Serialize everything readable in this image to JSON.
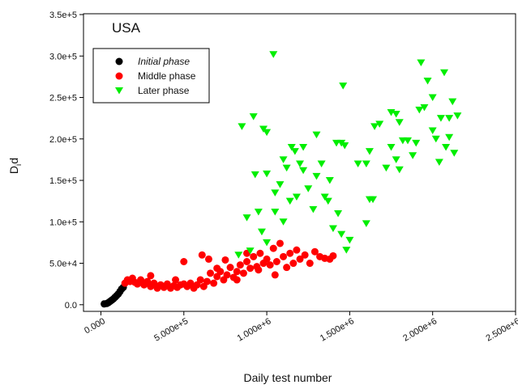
{
  "chart_data": {
    "type": "scatter",
    "annotation": "USA",
    "x_label": "Daily test number",
    "y_label": [
      "D",
      "i",
      "d"
    ],
    "xlim": [
      -105000,
      2500000
    ],
    "ylim": [
      -8000,
      351000
    ],
    "xticks": [
      {
        "value": 0,
        "label": "0.000"
      },
      {
        "value": 500000,
        "label": "5.000e+5"
      },
      {
        "value": 1000000,
        "label": "1.000e+6"
      },
      {
        "value": 1500000,
        "label": "1.500e+6"
      },
      {
        "value": 2000000,
        "label": "2.000e+6"
      },
      {
        "value": 2500000,
        "label": "2.500e+6"
      }
    ],
    "yticks": [
      {
        "value": 0,
        "label": "0.0"
      },
      {
        "value": 50000,
        "label": "5.0e+4"
      },
      {
        "value": 100000,
        "label": "1.0e+5"
      },
      {
        "value": 150000,
        "label": "1.5e+5"
      },
      {
        "value": 200000,
        "label": "2.0e+5"
      },
      {
        "value": 250000,
        "label": "2.5e+5"
      },
      {
        "value": 300000,
        "label": "3.0e+5"
      },
      {
        "value": 350000,
        "label": "3.5e+5"
      }
    ],
    "series": [
      {
        "name": "Initial phase",
        "color": "#000000",
        "marker": "circle",
        "font_style": "italic",
        "x": [
          20000,
          35000,
          45000,
          55000,
          65000,
          75000,
          85000,
          95000,
          105000,
          115000,
          125000,
          135000
        ],
        "y": [
          1000,
          1500,
          2500,
          4000,
          5500,
          7000,
          9000,
          11000,
          13000,
          16000,
          19000,
          21000
        ]
      },
      {
        "name": "Middle phase",
        "color": "#ff0000",
        "marker": "circle",
        "font_style": "normal",
        "x": [
          145000,
          160000,
          175000,
          190000,
          205000,
          220000,
          240000,
          260000,
          280000,
          300000,
          320000,
          340000,
          360000,
          380000,
          400000,
          420000,
          440000,
          460000,
          480000,
          500000,
          520000,
          540000,
          560000,
          580000,
          600000,
          620000,
          640000,
          660000,
          680000,
          700000,
          720000,
          740000,
          760000,
          780000,
          800000,
          820000,
          840000,
          860000,
          880000,
          900000,
          920000,
          940000,
          960000,
          980000,
          1000000,
          1020000,
          1040000,
          1060000,
          1080000,
          1100000,
          1120000,
          1140000,
          1160000,
          1180000,
          1200000,
          1230000,
          1260000,
          1290000,
          1320000,
          1350000,
          1380000,
          1400000,
          610000,
          650000,
          700000,
          750000,
          820000,
          880000,
          950000,
          1050000,
          500000,
          450000,
          300000
        ],
        "y": [
          26000,
          30000,
          28000,
          32000,
          27000,
          25000,
          30000,
          24000,
          28000,
          22000,
          26000,
          20000,
          24000,
          21000,
          25000,
          20000,
          23000,
          21000,
          24000,
          52000,
          22000,
          26000,
          20000,
          24000,
          30000,
          22000,
          28000,
          38000,
          26000,
          34000,
          40000,
          30000,
          36000,
          45000,
          33000,
          40000,
          48000,
          38000,
          52000,
          44000,
          58000,
          46000,
          62000,
          50000,
          55000,
          48000,
          68000,
          52000,
          74000,
          58000,
          45000,
          62000,
          50000,
          66000,
          55000,
          60000,
          50000,
          64000,
          58000,
          56000,
          55000,
          59000,
          60000,
          55000,
          44000,
          54000,
          30000,
          62000,
          42000,
          36000,
          25000,
          30000,
          35000
        ]
      },
      {
        "name": "Later phase",
        "color": "#00ee00",
        "marker": "triangle-down",
        "font_style": "normal",
        "x": [
          850000,
          920000,
          980000,
          1000000,
          880000,
          930000,
          950000,
          970000,
          900000,
          830000,
          1000000,
          1050000,
          1080000,
          1100000,
          1120000,
          1150000,
          1170000,
          1200000,
          1220000,
          1250000,
          1280000,
          1300000,
          1330000,
          1350000,
          1380000,
          1400000,
          1420000,
          1450000,
          1470000,
          1500000,
          1480000,
          1450000,
          1430000,
          1140000,
          1180000,
          1050000,
          1100000,
          1600000,
          1620000,
          1640000,
          1550000,
          1600000,
          1650000,
          1680000,
          1620000,
          1720000,
          1750000,
          1780000,
          1800000,
          1820000,
          1780000,
          1800000,
          1850000,
          1880000,
          1900000,
          1920000,
          1950000,
          1930000,
          1970000,
          2000000,
          2020000,
          2050000,
          2070000,
          2100000,
          2120000,
          2150000,
          2080000,
          2130000,
          2040000,
          2000000,
          1300000,
          1220000,
          1000000,
          1370000,
          1460000,
          1040000,
          1750000,
          2100000
        ],
        "y": [
          215000,
          227000,
          212000,
          208000,
          105000,
          157000,
          112000,
          88000,
          65000,
          60000,
          75000,
          135000,
          145000,
          175000,
          165000,
          190000,
          185000,
          170000,
          162000,
          140000,
          115000,
          155000,
          170000,
          130000,
          150000,
          92000,
          195000,
          195000,
          192000,
          78000,
          66000,
          85000,
          110000,
          125000,
          130000,
          112000,
          100000,
          98000,
          127000,
          127000,
          170000,
          170000,
          215000,
          218000,
          185000,
          165000,
          190000,
          230000,
          220000,
          198000,
          175000,
          163000,
          198000,
          180000,
          195000,
          235000,
          238000,
          292000,
          270000,
          250000,
          200000,
          225000,
          280000,
          225000,
          245000,
          228000,
          190000,
          183000,
          172000,
          210000,
          205000,
          190000,
          158000,
          125000,
          264000,
          302000,
          232000,
          202000
        ]
      }
    ]
  }
}
